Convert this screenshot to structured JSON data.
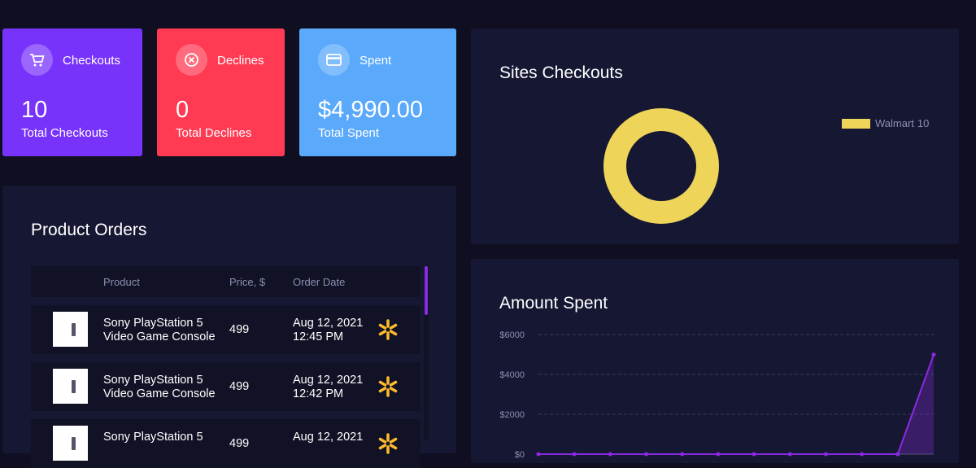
{
  "cards": [
    {
      "title": "Checkouts",
      "value": 10,
      "caption": "Total Checkouts"
    },
    {
      "title": "Declines",
      "value": 0,
      "caption": "Total Declines"
    },
    {
      "title": "Spent",
      "value": "$4,990.00",
      "caption": "Total Spent"
    }
  ],
  "product_orders": {
    "title": "Product Orders",
    "headers": [
      "Product",
      "Price, $",
      "Order Date"
    ],
    "rows": [
      {
        "product": [
          "Sony PlayStation 5",
          "Video Game Console"
        ],
        "price": 499,
        "date": "Aug 12, 2021",
        "time": "12:45 PM"
      },
      {
        "product": [
          "Sony PlayStation 5",
          "Video Game Console"
        ],
        "price": 499,
        "date": "Aug 12, 2021",
        "time": "12:42 PM"
      },
      {
        "product": [
          "Sony PlayStation 5"
        ],
        "price": 499,
        "date": "Aug 12, 2021"
      }
    ]
  },
  "chart_data": [
    {
      "type": "donut",
      "title": "Sites Checkouts",
      "categories": [
        "Walmart"
      ],
      "values": [
        10
      ],
      "colors": [
        "#eed55a"
      ],
      "legend": "right"
    },
    {
      "type": "line",
      "title": "Amount Spent",
      "categories": [
        null,
        null,
        null,
        null,
        null,
        null,
        null,
        null,
        null,
        null,
        null,
        null
      ],
      "series": [
        {
          "name": null,
          "color": "#8a2be2",
          "values": [
            0,
            0,
            0,
            0,
            0,
            0,
            0,
            0,
            0,
            0,
            0,
            4990
          ]
        }
      ],
      "ylim": [
        0,
        6000
      ],
      "yticks": [
        {
          "value": 0,
          "label": "$0"
        },
        {
          "value": 2000,
          "label": "$2000"
        },
        {
          "value": 4000,
          "label": "$4000"
        },
        {
          "value": 6000,
          "label": "$6000"
        }
      ],
      "grid": true
    }
  ]
}
